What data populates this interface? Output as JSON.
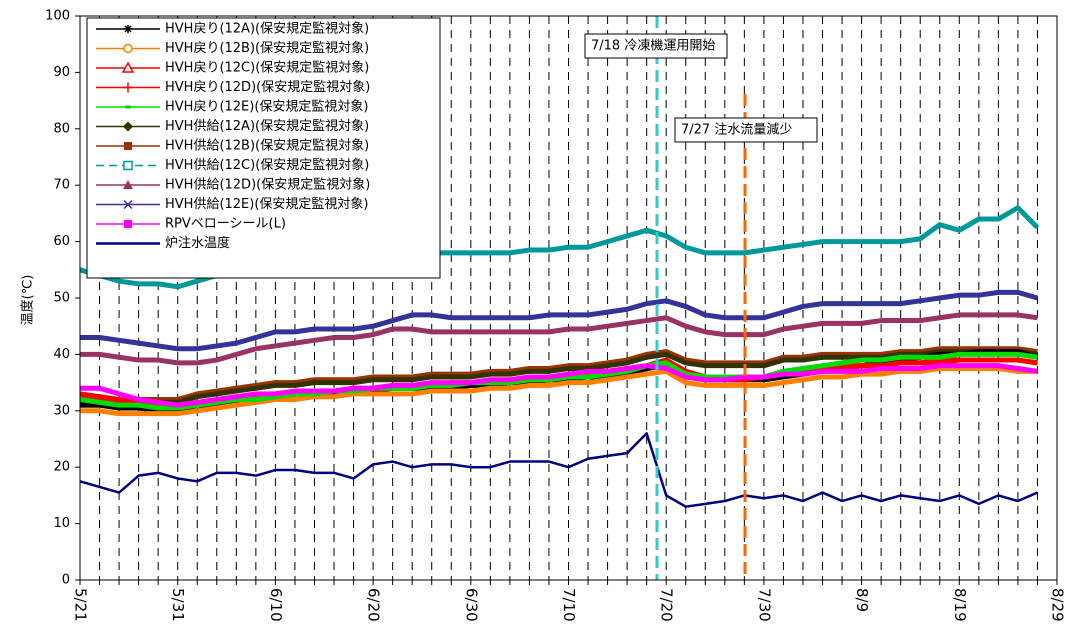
{
  "chart_data": {
    "type": "line",
    "y_label": "温度(℃)",
    "annotations": [
      "7/18 冷凍機運用開始",
      "7/27 注水流量減少"
    ],
    "categories": [
      "5/21",
      null,
      null,
      null,
      null,
      "5/31",
      null,
      null,
      null,
      null,
      "6/10",
      null,
      null,
      null,
      null,
      "6/20",
      null,
      null,
      null,
      null,
      "6/30",
      null,
      null,
      null,
      null,
      "7/10",
      null,
      null,
      null,
      null,
      "7/20",
      null,
      null,
      null,
      null,
      "7/30",
      null,
      null,
      null,
      null,
      "8/9",
      null,
      null,
      null,
      null,
      "8/19",
      null,
      null,
      null,
      null,
      "8/29"
    ],
    "ylim": [
      0,
      100
    ],
    "yticks": [
      0,
      10,
      20,
      30,
      40,
      50,
      60,
      70,
      80,
      90,
      100
    ],
    "series": [
      {
        "name": "HVH戻り(12A)(保安規定監視対象)",
        "color": "#000000",
        "marker": "star",
        "values": [
          31,
          31,
          30.5,
          30.5,
          30,
          30,
          30,
          31,
          31.5,
          32,
          32.5,
          33,
          33,
          33,
          33.5,
          33.5,
          34,
          34,
          34,
          34,
          34.5,
          34.5,
          35,
          35,
          35.5,
          35.5,
          36,
          36,
          36.5,
          37.5,
          38,
          36,
          35.5,
          35.5,
          35.5,
          35.5,
          36,
          36.5,
          37,
          37.5,
          38,
          38.5,
          39,
          39.5,
          40,
          40,
          40.5,
          40.5,
          40.5,
          39.5,
          null
        ]
      },
      {
        "name": "HVH戻り(12B)(保安規定監視対象)",
        "color": "#ff8000",
        "marker": "circle-open",
        "values": [
          30,
          30,
          29.5,
          29.5,
          29.5,
          29.5,
          30,
          30.5,
          31,
          31.5,
          32,
          32,
          32.5,
          32.5,
          33,
          33,
          33,
          33,
          33.5,
          33.5,
          33.5,
          34,
          34,
          34.5,
          34.5,
          35,
          35,
          35.5,
          36,
          36.5,
          37,
          35,
          34.5,
          34.5,
          34.5,
          34.5,
          35,
          35.5,
          36,
          36,
          36.5,
          36.5,
          37,
          37,
          37.5,
          37.5,
          37.5,
          37.5,
          37,
          37,
          null
        ]
      },
      {
        "name": "HVH戻り(12C)(保安規定監視対象)",
        "color": "#ff0000",
        "marker": "triangle-open",
        "values": [
          33,
          32.5,
          32,
          31.5,
          31,
          30.5,
          31,
          31.5,
          32,
          32.5,
          33,
          33,
          33.5,
          33.5,
          34,
          34,
          34.5,
          34.5,
          34.5,
          35,
          35,
          35,
          35.5,
          35.5,
          36,
          36,
          36.5,
          37,
          37.5,
          38,
          39,
          37,
          36,
          36,
          36,
          36,
          36.5,
          37,
          37.5,
          38,
          38,
          38,
          38.5,
          38.5,
          39,
          39,
          39,
          39,
          39,
          38.5,
          null
        ]
      },
      {
        "name": "HVH戻り(12D)(保安規定監視対象)",
        "color": "#ff0000",
        "marker": "plus",
        "values": [
          32.5,
          32,
          31.5,
          31,
          30.5,
          30.5,
          31,
          31.5,
          32,
          32.5,
          32.5,
          33,
          33,
          33.5,
          33.5,
          34,
          34,
          34.5,
          34.5,
          34.5,
          35,
          35,
          35,
          35.5,
          35.5,
          36,
          36.5,
          36.5,
          37,
          38,
          38.5,
          36.5,
          36,
          35.5,
          35.5,
          36,
          36.5,
          37,
          37.5,
          37.5,
          38,
          38,
          38.5,
          38.5,
          38.5,
          39,
          39,
          39,
          39,
          38.5,
          null
        ]
      },
      {
        "name": "HVH戻り(12E)(保安規定監視対象)",
        "color": "#00dd00",
        "marker": "dash",
        "values": [
          32,
          31.5,
          31,
          31,
          30.5,
          30.5,
          31,
          31.5,
          32,
          32,
          32.5,
          33,
          33,
          33.5,
          33.5,
          34,
          34,
          34,
          34.5,
          34.5,
          35,
          35,
          35,
          35.5,
          35.5,
          36,
          36,
          36.5,
          37,
          38,
          38.5,
          36.5,
          36,
          36,
          36,
          36,
          37,
          37.5,
          38,
          38.5,
          39,
          39,
          39.5,
          39.5,
          39.5,
          40,
          40,
          40,
          40,
          39.5,
          null
        ]
      },
      {
        "name": "HVH供給(12A)(保安規定監視対象)",
        "color": "#333300",
        "marker": "diamond",
        "values": [
          31,
          31,
          31,
          31.5,
          31.5,
          31.5,
          32.5,
          33,
          33.5,
          34,
          34.5,
          34.5,
          35,
          35,
          35,
          35.5,
          35.5,
          35.5,
          36,
          36,
          36,
          36.5,
          36.5,
          37,
          37,
          37.5,
          37.5,
          38,
          38.5,
          39.5,
          40,
          38.5,
          38,
          38,
          38,
          38,
          39,
          39,
          39.5,
          39.5,
          39.5,
          39.5,
          40,
          40,
          40.5,
          40.5,
          40.5,
          40.5,
          40.5,
          40,
          null
        ]
      },
      {
        "name": "HVH供給(12B)(保安規定監視対象)",
        "color": "#993300",
        "marker": "square",
        "values": [
          31.5,
          31.5,
          31.5,
          32,
          32,
          32,
          33,
          33.5,
          34,
          34.5,
          35,
          35,
          35.5,
          35.5,
          35.5,
          36,
          36,
          36,
          36.5,
          36.5,
          36.5,
          37,
          37,
          37.5,
          37.5,
          38,
          38,
          38.5,
          39,
          40,
          40.5,
          39,
          38.5,
          38.5,
          38.5,
          38.5,
          39.5,
          39.5,
          40,
          40,
          40,
          40,
          40.5,
          40.5,
          41,
          41,
          41,
          41,
          41,
          40.5,
          null
        ]
      },
      {
        "name": "HVH供給(12C)(保安規定監視対象)",
        "color": "#009999",
        "marker": "square-open",
        "dashed": true,
        "values": [
          55,
          54,
          53,
          52.5,
          52.5,
          52,
          53,
          54,
          55,
          56,
          57,
          57,
          57.5,
          57.5,
          58,
          58,
          58,
          58,
          58,
          58,
          58,
          58,
          58,
          58.5,
          58.5,
          59,
          59,
          60,
          61,
          62,
          61,
          59,
          58,
          58,
          58,
          58.5,
          59,
          59.5,
          60,
          60,
          60,
          60,
          60,
          60.5,
          63,
          62,
          64,
          64,
          66,
          62.5,
          null
        ]
      },
      {
        "name": "HVH供給(12D)(保安規定監視対象)",
        "color": "#993366",
        "marker": "triangle",
        "values": [
          40,
          40,
          39.5,
          39,
          39,
          38.5,
          38.5,
          39,
          40,
          41,
          41.5,
          42,
          42.5,
          43,
          43,
          43.5,
          44.5,
          44.5,
          44,
          44,
          44,
          44,
          44,
          44,
          44,
          44.5,
          44.5,
          45,
          45.5,
          46,
          46.5,
          45,
          44,
          43.5,
          43.5,
          43.5,
          44.5,
          45,
          45.5,
          45.5,
          45.5,
          46,
          46,
          46,
          46.5,
          47,
          47,
          47,
          47,
          46.5,
          null
        ]
      },
      {
        "name": "HVH供給(12E)(保安規定監視対象)",
        "color": "#333399",
        "marker": "x",
        "values": [
          43,
          43,
          42.5,
          42,
          41.5,
          41,
          41,
          41.5,
          42,
          43,
          44,
          44,
          44.5,
          44.5,
          44.5,
          45,
          46,
          47,
          47,
          46.5,
          46.5,
          46.5,
          46.5,
          46.5,
          47,
          47,
          47,
          47.5,
          48,
          49,
          49.5,
          48.5,
          47,
          46.5,
          46.5,
          46.5,
          47.5,
          48.5,
          49,
          49,
          49,
          49,
          49,
          49.5,
          50,
          50.5,
          50.5,
          51,
          51,
          50,
          null
        ]
      },
      {
        "name": "RPVベローシール(L)",
        "color": "#ff00ff",
        "marker": "square",
        "values": [
          34,
          34,
          33,
          32,
          31.5,
          31,
          31.5,
          32,
          32.5,
          33,
          33,
          33.5,
          33.5,
          33.5,
          34,
          34,
          34.5,
          34.5,
          35,
          35,
          35,
          35.5,
          35.5,
          36,
          36,
          36.5,
          37,
          37,
          37.5,
          38,
          37.5,
          36,
          35.5,
          35.5,
          36,
          36,
          36.5,
          36.5,
          37,
          37,
          37,
          37.5,
          37.5,
          37.5,
          38,
          38,
          38,
          38,
          37.5,
          37,
          null
        ]
      },
      {
        "name": "炉注水温度",
        "color": "#000080",
        "marker": "none",
        "values": [
          17.5,
          16.5,
          15.5,
          18.5,
          19,
          18,
          17.5,
          19,
          19,
          18.5,
          19.5,
          19.5,
          19,
          19,
          18,
          20.5,
          21,
          20,
          20.5,
          20.5,
          20,
          20,
          21,
          21,
          21,
          20,
          21.5,
          22,
          22.5,
          26,
          15,
          13,
          13.5,
          14,
          15,
          14.5,
          15,
          14,
          15.5,
          14,
          15,
          14,
          15,
          14.5,
          14,
          15,
          13.5,
          15,
          14,
          15.5,
          null
        ]
      }
    ]
  }
}
